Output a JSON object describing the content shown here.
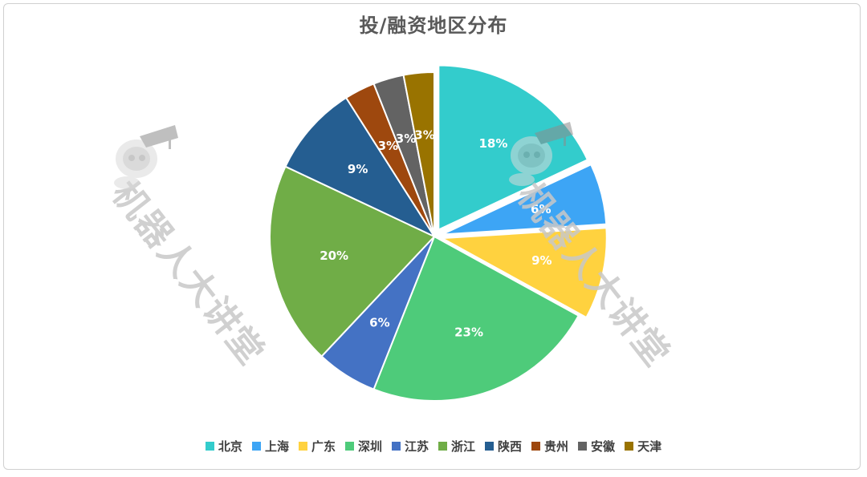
{
  "chart_data": {
    "type": "pie",
    "title": "投/融资地区分布",
    "slices": [
      {
        "label": "北京",
        "value": 18,
        "color": "#33CCCC",
        "exploded": true
      },
      {
        "label": "上海",
        "value": 6,
        "color": "#3DA5F5",
        "exploded": true
      },
      {
        "label": "广东",
        "value": 9,
        "color": "#FFD23F",
        "exploded": true
      },
      {
        "label": "深圳",
        "value": 23,
        "color": "#4ECB7A",
        "exploded": false
      },
      {
        "label": "江苏",
        "value": 6,
        "color": "#4472C4",
        "exploded": false
      },
      {
        "label": "浙江",
        "value": 20,
        "color": "#70AD47",
        "exploded": false
      },
      {
        "label": "陕西",
        "value": 9,
        "color": "#255E91",
        "exploded": false
      },
      {
        "label": "贵州",
        "value": 3,
        "color": "#9E480E",
        "exploded": false
      },
      {
        "label": "安徽",
        "value": 3,
        "color": "#636363",
        "exploded": false
      },
      {
        "label": "天津",
        "value": 3,
        "color": "#997300",
        "exploded": false
      }
    ],
    "value_suffix": "%",
    "legend_position": "bottom"
  },
  "watermark": {
    "text": "机器人大讲堂"
  }
}
